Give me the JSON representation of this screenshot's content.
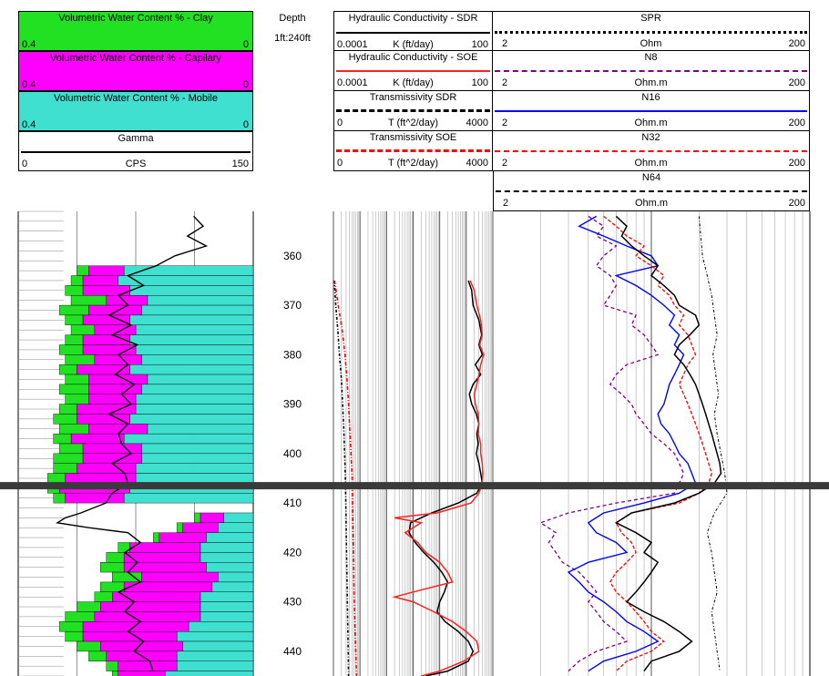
{
  "header": {
    "clay": {
      "title": "Volumetric Water Content % - Clay",
      "left": "0.4",
      "right": "0",
      "color": "#22e022"
    },
    "capillary": {
      "title": "Volumetric Water Content % - Capilary",
      "left": "0.4",
      "right": "0",
      "color": "#ff00ff"
    },
    "mobile": {
      "title": "Volumetric Water Content % -  Mobile",
      "left": "0.4",
      "right": "0",
      "color": "#40e0d0"
    },
    "gamma": {
      "title": "Gamma",
      "left": "0",
      "unit": "CPS",
      "right": "150"
    },
    "depth": {
      "title": "Depth",
      "scale": "1ft:240ft"
    },
    "k_sdr": {
      "title": "Hydraulic Conductivity - SDR",
      "left": "0.0001",
      "unit": "K (ft/day)",
      "right": "100"
    },
    "k_soe": {
      "title": "Hydraulic Conductivity - SOE",
      "left": "0.0001",
      "unit": "K (ft/day)",
      "right": "100"
    },
    "t_sdr": {
      "title": "Transmissivity SDR",
      "left": "0",
      "unit": "T (ft^2/day)",
      "right": "4000"
    },
    "t_soe": {
      "title": "Transmissivity SOE",
      "left": "0",
      "unit": "T (ft^2/day)",
      "right": "4000"
    },
    "spr": {
      "title": "SPR",
      "left": "2",
      "unit": "Ohm",
      "right": "200"
    },
    "n8": {
      "title": "N8",
      "left": "2",
      "unit": "Ohm.m",
      "right": "200"
    },
    "n16": {
      "title": "N16",
      "left": "2",
      "unit": "Ohm.m",
      "right": "200"
    },
    "n32": {
      "title": "N32",
      "left": "2",
      "unit": "Ohm.m",
      "right": "200"
    },
    "n64": {
      "title": "N64",
      "left": "2",
      "unit": "Ohm.m",
      "right": "200"
    }
  },
  "chart_data": {
    "type": "line",
    "depth_axis": {
      "range": [
        351,
        445
      ],
      "ticks": [
        360,
        370,
        380,
        390,
        400,
        410,
        420,
        430,
        440
      ],
      "marker_depth": 406.5
    },
    "colors": {
      "k_sdr": "#000000",
      "k_soe": "#ff2020",
      "n8": "#800080",
      "n16": "#0000ff",
      "n32": "#ff0000",
      "n64": "#000000",
      "spr": "#000000",
      "t_sdr": "#000000",
      "t_soe": "#ff0000"
    },
    "series": [
      {
        "name": "Gamma",
        "key": "gamma",
        "xlim": [
          0,
          150
        ],
        "depth": [
          352,
          354,
          356,
          358,
          360,
          362,
          364,
          366,
          368,
          370,
          372,
          374,
          376,
          378,
          380,
          382,
          384,
          386,
          388,
          390,
          392,
          394,
          396,
          398,
          400,
          402,
          404,
          406,
          408,
          410,
          411,
          412,
          413,
          414,
          415,
          416,
          418,
          420,
          422,
          424,
          426,
          428,
          430,
          432,
          434,
          436,
          438,
          440,
          442,
          444
        ],
        "values": [
          112,
          118,
          108,
          120,
          100,
          88,
          70,
          80,
          64,
          70,
          58,
          72,
          60,
          76,
          64,
          70,
          62,
          74,
          66,
          72,
          58,
          70,
          64,
          66,
          72,
          60,
          68,
          70,
          60,
          56,
          48,
          40,
          30,
          25,
          45,
          70,
          78,
          68,
          76,
          70,
          78,
          64,
          74,
          68,
          78,
          70,
          80,
          74,
          84,
          86
        ]
      },
      {
        "name": "Hydraulic Conductivity - SDR",
        "key": "k_sdr",
        "xlim": [
          0.0001,
          100
        ],
        "log": true,
        "depth": [
          365,
          367,
          370,
          373,
          376,
          378,
          380,
          382,
          384,
          386,
          388,
          390,
          392,
          394,
          396,
          398,
          400,
          402,
          404,
          406,
          408,
          410,
          412,
          414,
          416,
          418,
          420,
          422,
          424,
          426,
          428,
          430,
          432,
          434,
          436,
          438,
          440,
          442,
          444,
          445
        ],
        "values": [
          12,
          16,
          18,
          30,
          38,
          30,
          40,
          22,
          35,
          18,
          13,
          16,
          24,
          30,
          25,
          28,
          24,
          30,
          35,
          40,
          25,
          5,
          0.5,
          0.08,
          0.07,
          0.12,
          0.25,
          0.6,
          1.2,
          2,
          1.5,
          1,
          0.8,
          1.6,
          5,
          12,
          18,
          12,
          2,
          0.3
        ]
      },
      {
        "name": "Hydraulic Conductivity - SOE",
        "key": "k_soe",
        "xlim": [
          0.0001,
          100
        ],
        "log": true,
        "depth": [
          365,
          367,
          370,
          373,
          376,
          378,
          380,
          382,
          384,
          386,
          388,
          390,
          392,
          394,
          396,
          398,
          400,
          402,
          404,
          406,
          408,
          410,
          412,
          413,
          414,
          416,
          418,
          420,
          422,
          424,
          426,
          428,
          429,
          430,
          432,
          434,
          436,
          438,
          440,
          442,
          444,
          445
        ],
        "values": [
          14,
          20,
          25,
          35,
          40,
          32,
          45,
          35,
          30,
          25,
          20,
          22,
          28,
          30,
          28,
          35,
          35,
          40,
          42,
          40,
          30,
          15,
          0.8,
          0.02,
          0.2,
          0.05,
          0.15,
          0.3,
          1,
          2,
          3,
          0.1,
          0.02,
          0.1,
          0.6,
          3,
          10,
          25,
          30,
          8,
          1,
          0.2
        ]
      },
      {
        "name": "Transmissivity SDR",
        "key": "t_sdr",
        "xlim": [
          0,
          4000
        ],
        "depth": [
          365,
          370,
          375,
          380,
          385,
          390,
          395,
          400,
          405,
          410,
          415,
          420,
          425,
          430,
          435,
          440,
          445
        ],
        "values": [
          20,
          60,
          110,
          150,
          200,
          230,
          260,
          280,
          300,
          310,
          320,
          330,
          340,
          350,
          360,
          370,
          380
        ]
      },
      {
        "name": "Transmissivity SOE",
        "key": "t_soe",
        "xlim": [
          0,
          4000
        ],
        "depth": [
          365,
          370,
          375,
          380,
          385,
          390,
          395,
          400,
          405,
          410,
          415,
          420,
          425,
          430,
          435,
          440,
          445
        ],
        "values": [
          30,
          120,
          220,
          290,
          340,
          380,
          410,
          440,
          470,
          480,
          490,
          500,
          510,
          520,
          540,
          560,
          580
        ]
      },
      {
        "name": "SPR",
        "key": "spr",
        "xlim": [
          2,
          200
        ],
        "log": true,
        "depth": [
          352,
          356,
          360,
          364,
          368,
          372,
          376,
          380,
          384,
          388,
          392,
          396,
          400,
          404,
          408,
          412,
          416,
          420,
          424,
          428,
          432,
          436,
          440,
          444
        ],
        "values": [
          40,
          41,
          42,
          45,
          48,
          50,
          52,
          49,
          51,
          53,
          50,
          52,
          55,
          58,
          60,
          50,
          45,
          48,
          50,
          52,
          48,
          50,
          52,
          54
        ]
      },
      {
        "name": "N8",
        "key": "n8",
        "xlim": [
          2,
          200
        ],
        "log": true,
        "depth": [
          352,
          354,
          356,
          358,
          360,
          362,
          364,
          366,
          368,
          370,
          372,
          374,
          376,
          378,
          380,
          382,
          384,
          386,
          388,
          390,
          392,
          394,
          396,
          398,
          400,
          402,
          404,
          406,
          408,
          410,
          412,
          414,
          416,
          418,
          420,
          422,
          424,
          426,
          428,
          430,
          432,
          434,
          436,
          438,
          440,
          442,
          444
        ],
        "values": [
          8,
          10,
          9,
          12,
          10,
          9,
          11,
          12,
          11,
          10,
          16,
          15,
          18,
          20,
          22,
          14,
          12,
          11,
          13,
          15,
          16,
          18,
          20,
          24,
          28,
          30,
          32,
          30,
          28,
          12,
          6,
          4,
          5,
          4.5,
          5,
          5.5,
          7,
          8,
          9,
          8,
          9,
          10,
          12,
          14,
          9,
          7,
          6
        ]
      },
      {
        "name": "N16",
        "key": "n16",
        "xlim": [
          2,
          200
        ],
        "log": true,
        "depth": [
          352,
          354,
          356,
          358,
          360,
          362,
          364,
          366,
          368,
          370,
          372,
          374,
          376,
          378,
          380,
          382,
          384,
          386,
          388,
          390,
          392,
          394,
          396,
          398,
          400,
          402,
          404,
          406,
          408,
          410,
          412,
          414,
          416,
          418,
          420,
          422,
          424,
          426,
          428,
          430,
          432,
          434,
          436,
          438,
          440,
          442,
          444
        ],
        "values": [
          9,
          7,
          10,
          14,
          20,
          22,
          12,
          16,
          20,
          24,
          28,
          26,
          30,
          28,
          32,
          30,
          28,
          26,
          25,
          24,
          22,
          23,
          26,
          28,
          30,
          34,
          36,
          38,
          30,
          18,
          10,
          8,
          9,
          12,
          14,
          8,
          6,
          7,
          8,
          10,
          12,
          14,
          18,
          22,
          16,
          10,
          8
        ]
      },
      {
        "name": "N32",
        "key": "n32",
        "xlim": [
          2,
          200
        ],
        "log": true,
        "depth": [
          352,
          354,
          356,
          358,
          360,
          362,
          364,
          366,
          368,
          370,
          372,
          374,
          376,
          378,
          380,
          382,
          384,
          386,
          388,
          390,
          392,
          394,
          396,
          398,
          400,
          402,
          404,
          406,
          408,
          410,
          412,
          414,
          416,
          418,
          420,
          422,
          424,
          426,
          428,
          430,
          432,
          434,
          436,
          438,
          440,
          442,
          444
        ],
        "values": [
          10,
          12,
          14,
          18,
          16,
          20,
          24,
          22,
          26,
          28,
          32,
          30,
          34,
          36,
          38,
          34,
          32,
          30,
          32,
          34,
          36,
          38,
          40,
          42,
          44,
          46,
          48,
          46,
          40,
          30,
          15,
          12,
          13,
          15,
          16,
          14,
          12,
          11,
          12,
          14,
          16,
          18,
          20,
          24,
          20,
          14,
          12
        ]
      },
      {
        "name": "N64",
        "key": "n64",
        "xlim": [
          2,
          200
        ],
        "log": true,
        "depth": [
          352,
          354,
          356,
          358,
          360,
          362,
          364,
          366,
          368,
          370,
          372,
          374,
          376,
          378,
          380,
          382,
          384,
          386,
          388,
          390,
          392,
          394,
          396,
          398,
          400,
          402,
          404,
          406,
          408,
          410,
          412,
          414,
          416,
          418,
          420,
          422,
          424,
          426,
          428,
          430,
          432,
          434,
          436,
          438,
          440,
          442,
          444
        ],
        "values": [
          12,
          14,
          13,
          15,
          18,
          22,
          20,
          24,
          28,
          30,
          38,
          40,
          35,
          30,
          28,
          32,
          35,
          38,
          40,
          42,
          44,
          46,
          48,
          50,
          52,
          54,
          55,
          50,
          40,
          28,
          15,
          12,
          16,
          20,
          18,
          22,
          20,
          18,
          16,
          14,
          18,
          24,
          30,
          36,
          30,
          20,
          18
        ]
      }
    ],
    "water_content": {
      "note_scale_fraction": [
        0.4,
        0
      ],
      "depth": [
        362,
        364,
        366,
        368,
        370,
        372,
        374,
        376,
        378,
        380,
        382,
        384,
        386,
        388,
        390,
        392,
        394,
        396,
        398,
        400,
        402,
        404,
        406,
        408,
        412,
        414,
        416,
        418,
        420,
        422,
        424,
        426,
        428,
        430,
        432,
        434,
        436,
        438,
        440,
        442,
        444
      ],
      "total": [
        0.3,
        0.31,
        0.32,
        0.31,
        0.33,
        0.32,
        0.31,
        0.32,
        0.33,
        0.32,
        0.33,
        0.32,
        0.33,
        0.32,
        0.33,
        0.34,
        0.33,
        0.34,
        0.33,
        0.34,
        0.34,
        0.35,
        0.35,
        0.34,
        0.1,
        0.13,
        0.17,
        0.23,
        0.25,
        0.26,
        0.24,
        0.26,
        0.27,
        0.3,
        0.32,
        0.33,
        0.32,
        0.3,
        0.28,
        0.25,
        0.24
      ],
      "clay": [
        0.02,
        0.02,
        0.03,
        0.06,
        0.05,
        0.03,
        0.04,
        0.03,
        0.04,
        0.05,
        0.03,
        0.04,
        0.05,
        0.04,
        0.03,
        0.04,
        0.05,
        0.03,
        0.04,
        0.05,
        0.04,
        0.03,
        0.02,
        0.02,
        0.01,
        0.01,
        0.01,
        0.02,
        0.03,
        0.04,
        0.05,
        0.04,
        0.03,
        0.04,
        0.05,
        0.04,
        0.03,
        0.04,
        0.03,
        0.02,
        0.01
      ],
      "capillary": [
        0.06,
        0.06,
        0.08,
        0.07,
        0.09,
        0.08,
        0.07,
        0.08,
        0.09,
        0.08,
        0.09,
        0.1,
        0.09,
        0.08,
        0.1,
        0.09,
        0.1,
        0.09,
        0.1,
        0.1,
        0.1,
        0.12,
        0.12,
        0.1,
        0.04,
        0.06,
        0.08,
        0.12,
        0.13,
        0.14,
        0.13,
        0.15,
        0.15,
        0.17,
        0.18,
        0.18,
        0.16,
        0.14,
        0.12,
        0.1,
        0.08
      ]
    }
  }
}
